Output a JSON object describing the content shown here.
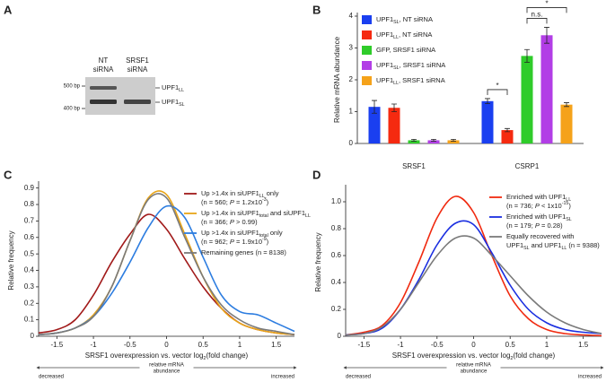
{
  "panel_labels": [
    "A",
    "B",
    "C",
    "D"
  ],
  "gel": {
    "lanes": [
      [
        "NT",
        "siRNA"
      ],
      [
        "SRSF1",
        "siRNA"
      ]
    ],
    "markers": [
      "500 bp",
      "400 bp"
    ],
    "bands": [
      [
        {
          "text": "UPF1"
        },
        {
          "text": "LL",
          "style": "sub"
        }
      ],
      [
        {
          "text": "UPF1"
        },
        {
          "text": "SL",
          "style": "sub"
        }
      ]
    ]
  },
  "chart_data": [
    {
      "type": "bar",
      "ylabel": "Relative mRNA abundance",
      "categories": [
        "SRSF1",
        "CSRP1"
      ],
      "ylim": [
        0,
        4
      ],
      "yticks": [
        0,
        1,
        2,
        3,
        4
      ],
      "series": [
        {
          "name": [
            [
              {
                "text": "UPF1"
              },
              {
                "text": "SL",
                "style": "sub"
              },
              {
                "text": ", NT siRNA"
              }
            ]
          ],
          "color": "#1a3ff0",
          "values": [
            1.15,
            1.33
          ],
          "errors": [
            0.2,
            0.08
          ]
        },
        {
          "name": [
            [
              {
                "text": "UPF1"
              },
              {
                "text": "LL",
                "style": "sub"
              },
              {
                "text": ", NT siRNA"
              }
            ]
          ],
          "color": "#f52a10",
          "values": [
            1.12,
            0.42
          ],
          "errors": [
            0.12,
            0.05
          ]
        },
        {
          "name": [
            [
              {
                "text": "GFP, SRSF1 siRNA"
              }
            ]
          ],
          "color": "#2fcc2a",
          "values": [
            0.1,
            2.75
          ],
          "errors": [
            0.03,
            0.2
          ]
        },
        {
          "name": [
            [
              {
                "text": "UPF1"
              },
              {
                "text": "SL",
                "style": "sub"
              },
              {
                "text": ", SRSF1 siRNA"
              }
            ]
          ],
          "color": "#b23ee6",
          "values": [
            0.1,
            3.4
          ],
          "errors": [
            0.03,
            0.25
          ]
        },
        {
          "name": [
            [
              {
                "text": "UPF1"
              },
              {
                "text": "LL",
                "style": "sub"
              },
              {
                "text": ", SRSF1 siRNA"
              }
            ]
          ],
          "color": "#f5a21a",
          "values": [
            0.1,
            1.22
          ],
          "errors": [
            0.03,
            0.06
          ]
        }
      ],
      "annotations": [
        "*",
        "n.s.",
        "*"
      ]
    },
    {
      "type": "line",
      "ylabel": "Relative frequency",
      "xlabel": [
        {
          "text": "SRSF1 overexpression vs. vector log"
        },
        {
          "text": "2",
          "style": "sub"
        },
        {
          "text": "(fold change)"
        }
      ],
      "x": [
        -1.75,
        -1.5,
        -1.25,
        -1,
        -0.75,
        -0.5,
        -0.25,
        0,
        0.25,
        0.5,
        0.75,
        1,
        1.25,
        1.5,
        1.75
      ],
      "xlim": [
        -1.75,
        1.75
      ],
      "xticks": [
        -1.5,
        -1,
        -0.5,
        0,
        0.5,
        1,
        1.5
      ],
      "ylim": [
        0,
        0.92
      ],
      "yticks": [
        0,
        0.1,
        0.2,
        0.3,
        0.4,
        0.5,
        0.6,
        0.7,
        0.8,
        0.9
      ],
      "series": [
        {
          "name": [
            [
              {
                "text": "Up >1.4x in siUPF1"
              },
              {
                "text": "LL",
                "style": "sub"
              },
              {
                "text": " only"
              }
            ],
            [
              {
                "text": "(n = 560; "
              },
              {
                "text": "P",
                "style": "italic"
              },
              {
                "text": " = 1.2x10"
              },
              {
                "text": "-3",
                "style": "sup"
              },
              {
                "text": ")"
              }
            ]
          ],
          "color": "#a11a1a",
          "values": [
            0.02,
            0.04,
            0.1,
            0.25,
            0.45,
            0.62,
            0.74,
            0.65,
            0.47,
            0.3,
            0.17,
            0.08,
            0.04,
            0.02,
            0.01
          ]
        },
        {
          "name": [
            [
              {
                "text": "Up >1.4x in siUPF1"
              },
              {
                "text": "total",
                "style": "sub"
              },
              {
                "text": " and siUPF1"
              },
              {
                "text": "LL",
                "style": "sub"
              }
            ],
            [
              {
                "text": "(n = 366; "
              },
              {
                "text": "P",
                "style": "italic"
              },
              {
                "text": " > 0.99)"
              }
            ]
          ],
          "color": "#e8a519",
          "values": [
            0.01,
            0.02,
            0.05,
            0.13,
            0.3,
            0.58,
            0.84,
            0.86,
            0.62,
            0.36,
            0.17,
            0.08,
            0.04,
            0.02,
            0.01
          ]
        },
        {
          "name": [
            [
              {
                "text": "Up >1.4x in siUPF1"
              },
              {
                "text": "total",
                "style": "sub"
              },
              {
                "text": " only"
              }
            ],
            [
              {
                "text": "(n = 962; "
              },
              {
                "text": "P",
                "style": "italic"
              },
              {
                "text": " = 1.9x10"
              },
              {
                "text": "-9",
                "style": "sup"
              },
              {
                "text": ")"
              }
            ]
          ],
          "color": "#2d7de0",
          "values": [
            0.01,
            0.02,
            0.05,
            0.12,
            0.26,
            0.45,
            0.66,
            0.79,
            0.72,
            0.48,
            0.25,
            0.15,
            0.13,
            0.08,
            0.03
          ]
        },
        {
          "name": [
            [
              {
                "text": "Remaining genes (n = 8138)"
              }
            ]
          ],
          "color": "#7a7a7a",
          "values": [
            0.01,
            0.02,
            0.05,
            0.12,
            0.3,
            0.58,
            0.83,
            0.84,
            0.6,
            0.36,
            0.19,
            0.1,
            0.05,
            0.03,
            0.01
          ]
        }
      ],
      "direction": {
        "left": "decreased",
        "center": [
          "relative mRNA",
          "abundance"
        ],
        "right": "increased"
      }
    },
    {
      "type": "line",
      "ylabel": "Relative frequency",
      "xlabel": [
        {
          "text": "SRSF1 overexpression vs. vector log"
        },
        {
          "text": "2",
          "style": "sub"
        },
        {
          "text": "(fold change)"
        }
      ],
      "x": [
        -1.75,
        -1.5,
        -1.25,
        -1,
        -0.75,
        -0.5,
        -0.25,
        0,
        0.25,
        0.5,
        0.75,
        1,
        1.25,
        1.5,
        1.75
      ],
      "xlim": [
        -1.75,
        1.75
      ],
      "xticks": [
        -1.5,
        -1,
        -0.5,
        0,
        0.5,
        1,
        1.5
      ],
      "ylim": [
        0,
        1.1
      ],
      "yticks": [
        0,
        0.2,
        0.4,
        0.6,
        0.8,
        {
          "value": 1,
          "label": "1.0"
        }
      ],
      "series": [
        {
          "name": [
            [
              {
                "text": "Enriched with UPF1"
              },
              {
                "text": "LL",
                "style": "sub"
              }
            ],
            [
              {
                "text": "(n = 736; "
              },
              {
                "text": "P",
                "style": "italic"
              },
              {
                "text": " < 1x10"
              },
              {
                "text": "-15",
                "style": "sup"
              },
              {
                "text": ")"
              }
            ]
          ],
          "color": "#f02a10",
          "values": [
            0.01,
            0.03,
            0.08,
            0.25,
            0.55,
            0.88,
            1.04,
            0.92,
            0.6,
            0.3,
            0.13,
            0.05,
            0.02,
            0.01,
            0.005
          ]
        },
        {
          "name": [
            [
              {
                "text": "Enriched with UPF1"
              },
              {
                "text": "SL",
                "style": "sub"
              }
            ],
            [
              {
                "text": "(n = 179; "
              },
              {
                "text": "P",
                "style": "italic"
              },
              {
                "text": " = 0.28)"
              }
            ]
          ],
          "color": "#1a2ee0",
          "values": [
            0.01,
            0.02,
            0.06,
            0.2,
            0.42,
            0.68,
            0.84,
            0.83,
            0.62,
            0.38,
            0.2,
            0.1,
            0.05,
            0.03,
            0.02
          ]
        },
        {
          "name": [
            [
              {
                "text": "Equally recovered with"
              }
            ],
            [
              {
                "text": "UPF1"
              },
              {
                "text": "SL",
                "style": "sub"
              },
              {
                "text": " and UPF1"
              },
              {
                "text": "LL",
                "style": "sub"
              },
              {
                "text": " (n = 9388)"
              }
            ]
          ],
          "color": "#7a7a7a",
          "values": [
            0.01,
            0.02,
            0.07,
            0.2,
            0.4,
            0.6,
            0.73,
            0.73,
            0.6,
            0.45,
            0.3,
            0.18,
            0.1,
            0.05,
            0.02
          ]
        }
      ],
      "direction": {
        "left": "decreased",
        "center": [
          "relative mRNA",
          "abundance"
        ],
        "right": "increased"
      }
    }
  ]
}
